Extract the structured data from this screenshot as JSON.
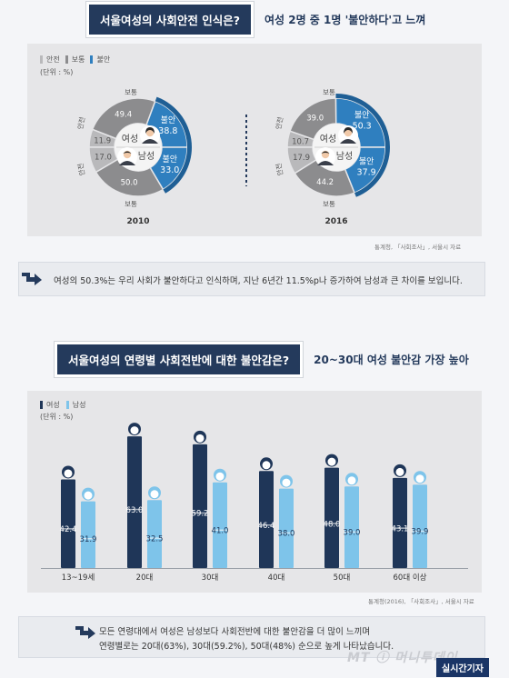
{
  "section1": {
    "title": "서울여성의 사회안전 인식은?",
    "subtitle": "여성 2명 중 1명 '불안하다'고 느껴",
    "legend": [
      "안전",
      "보통",
      "불안"
    ],
    "unit": "(단위 : %)",
    "source": "통계청, 「사회조사」, 서울시 자료"
  },
  "note1": "여성의 50.3%는 우리 사회가 불안하다고 인식하며, 지난 6년간 11.5%p나 증가하여 남성과 큰 차이를 보입니다.",
  "section2": {
    "title": "서울여성의 연령별 사회전반에 대한 불안감은?",
    "subtitle": "20~30대 여성 불안감 가장 높아",
    "legend": [
      "여성",
      "남성"
    ],
    "unit": "(단위 : %)",
    "source": "통계청(2016), 「사회조사」, 서울시 자료"
  },
  "note2": {
    "line1": "모든 연령대에서 여성은 남성보다 사회전반에 대한 불안감을 더 많이 느끼며",
    "line2": "연령별로는 20대(63%), 30대(59.2%), 50대(48%) 순으로 높게 나타났습니다."
  },
  "watermark": "MT ⓘ 머니투데이",
  "badge": "실시간기자",
  "colors": {
    "safe": "#b9b9bb",
    "normal": "#8c8c8e",
    "anxious": "#2f7fbf",
    "female": "#1f3658",
    "male": "#7ec4ea"
  },
  "chart_data": [
    {
      "type": "pie",
      "title": "2010",
      "center_labels": {
        "female": "여성",
        "male": "남성"
      },
      "category_labels": {
        "safe": "안전",
        "normal": "보통",
        "anxious": "불안"
      },
      "series": [
        {
          "name": "여성",
          "slices": [
            {
              "label": "안전",
              "value": 11.9
            },
            {
              "label": "보통",
              "value": 49.4
            },
            {
              "label": "불안",
              "value": 38.8
            }
          ]
        },
        {
          "name": "남성",
          "slices": [
            {
              "label": "안전",
              "value": 17.0
            },
            {
              "label": "보통",
              "value": 50.0
            },
            {
              "label": "불안",
              "value": 33.0
            }
          ]
        }
      ]
    },
    {
      "type": "pie",
      "title": "2016",
      "center_labels": {
        "female": "여성",
        "male": "남성"
      },
      "category_labels": {
        "safe": "안전",
        "normal": "보통",
        "anxious": "불안"
      },
      "series": [
        {
          "name": "여성",
          "slices": [
            {
              "label": "안전",
              "value": 10.7
            },
            {
              "label": "보통",
              "value": 39.0
            },
            {
              "label": "불안",
              "value": 50.3
            }
          ]
        },
        {
          "name": "남성",
          "slices": [
            {
              "label": "안전",
              "value": 17.9
            },
            {
              "label": "보통",
              "value": 44.2
            },
            {
              "label": "불안",
              "value": 37.9
            }
          ]
        }
      ]
    },
    {
      "type": "bar",
      "categories": [
        "13~19세",
        "20대",
        "30대",
        "40대",
        "50대",
        "60대 이상"
      ],
      "series": [
        {
          "name": "여성",
          "values": [
            42.4,
            63.0,
            59.2,
            46.4,
            48.0,
            43.1
          ]
        },
        {
          "name": "남성",
          "values": [
            31.9,
            32.5,
            41.0,
            38.0,
            39.0,
            39.9
          ]
        }
      ],
      "ylim": [
        0,
        70
      ]
    }
  ]
}
